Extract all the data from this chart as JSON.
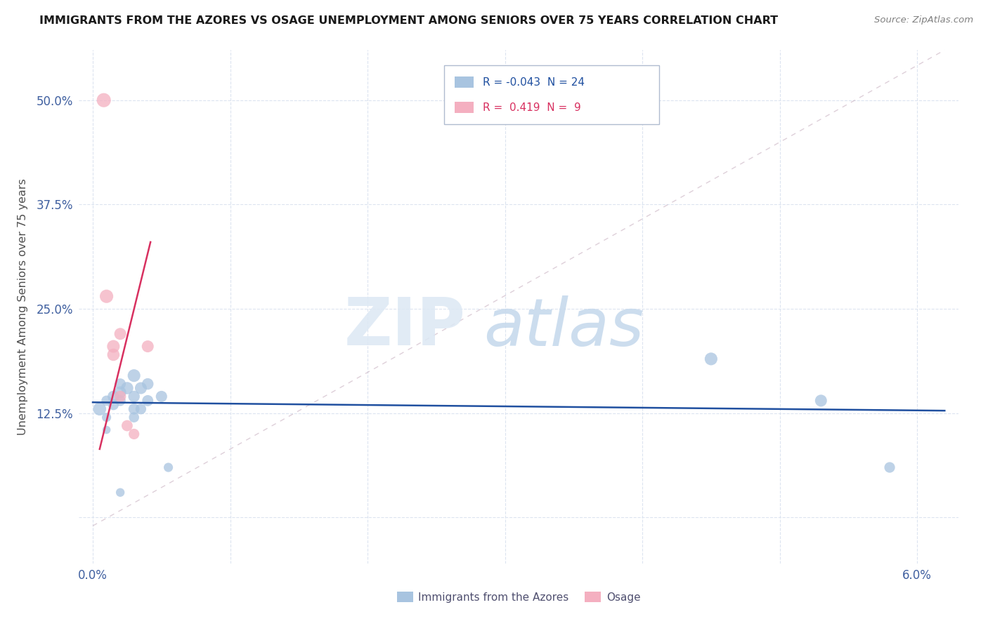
{
  "title": "IMMIGRANTS FROM THE AZORES VS OSAGE UNEMPLOYMENT AMONG SENIORS OVER 75 YEARS CORRELATION CHART",
  "source": "Source: ZipAtlas.com",
  "ylabel_label": "Unemployment Among Seniors over 75 years",
  "x_ticks": [
    0.0,
    0.01,
    0.02,
    0.03,
    0.04,
    0.05,
    0.06
  ],
  "y_ticks": [
    0.0,
    0.125,
    0.25,
    0.375,
    0.5
  ],
  "xlim": [
    -0.001,
    0.063
  ],
  "ylim": [
    -0.055,
    0.56
  ],
  "legend_blue_r": "-0.043",
  "legend_blue_n": "24",
  "legend_pink_r": "0.419",
  "legend_pink_n": "9",
  "blue_color": "#a8c4e0",
  "pink_color": "#f4afc0",
  "line_blue": "#2050a0",
  "line_pink": "#d83060",
  "blue_points": [
    [
      0.0005,
      0.13
    ],
    [
      0.001,
      0.14
    ],
    [
      0.001,
      0.12
    ],
    [
      0.001,
      0.105
    ],
    [
      0.0015,
      0.145
    ],
    [
      0.0015,
      0.135
    ],
    [
      0.002,
      0.15
    ],
    [
      0.002,
      0.16
    ],
    [
      0.002,
      0.14
    ],
    [
      0.002,
      0.03
    ],
    [
      0.0025,
      0.155
    ],
    [
      0.003,
      0.17
    ],
    [
      0.003,
      0.145
    ],
    [
      0.003,
      0.13
    ],
    [
      0.003,
      0.12
    ],
    [
      0.0035,
      0.155
    ],
    [
      0.0035,
      0.13
    ],
    [
      0.004,
      0.16
    ],
    [
      0.004,
      0.14
    ],
    [
      0.005,
      0.145
    ],
    [
      0.0055,
      0.06
    ],
    [
      0.045,
      0.19
    ],
    [
      0.053,
      0.14
    ],
    [
      0.058,
      0.06
    ]
  ],
  "blue_sizes": [
    180,
    110,
    90,
    70,
    140,
    120,
    150,
    130,
    120,
    80,
    160,
    170,
    140,
    130,
    110,
    150,
    120,
    140,
    130,
    135,
    90,
    170,
    150,
    120
  ],
  "pink_points": [
    [
      0.0008,
      0.5
    ],
    [
      0.001,
      0.265
    ],
    [
      0.0015,
      0.205
    ],
    [
      0.0015,
      0.195
    ],
    [
      0.002,
      0.22
    ],
    [
      0.002,
      0.145
    ],
    [
      0.0025,
      0.11
    ],
    [
      0.003,
      0.1
    ],
    [
      0.004,
      0.205
    ]
  ],
  "pink_sizes": [
    210,
    190,
    170,
    160,
    150,
    140,
    130,
    120,
    150
  ],
  "blue_line_x": [
    0.0,
    0.062
  ],
  "blue_line_y": [
    0.138,
    0.128
  ],
  "pink_line_x": [
    0.0005,
    0.0042
  ],
  "pink_line_y": [
    0.082,
    0.33
  ],
  "dashed_line_x": [
    0.0,
    0.062
  ],
  "dashed_line_y": [
    -0.01,
    0.56
  ],
  "grid_color": "#dce4f0",
  "background_color": "#ffffff",
  "tick_color": "#4060a0",
  "title_color": "#1a1a1a",
  "source_color": "#808080",
  "ylabel_color": "#505050"
}
